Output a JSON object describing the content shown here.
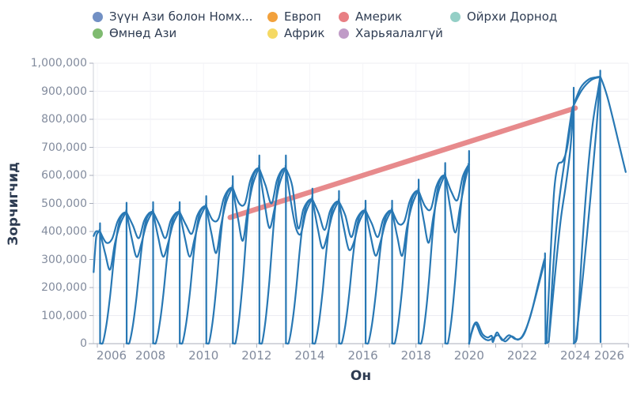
{
  "legend": {
    "items": [
      {
        "label": "Зүүн Ази болон Номх...",
        "color": "#7290c4"
      },
      {
        "label": "Европ",
        "color": "#f2a13c"
      },
      {
        "label": "Америк",
        "color": "#e87f84"
      },
      {
        "label": "Ойрхи Дорнод",
        "color": "#94cfc6"
      },
      {
        "label": "Өмнөд Ази",
        "color": "#7fbb70"
      },
      {
        "label": "Африк",
        "color": "#f5d964"
      },
      {
        "label": "Харьяалалгүй",
        "color": "#c09bc7"
      }
    ]
  },
  "axes": {
    "y_title": "Зорчигчид",
    "x_title": "Он",
    "y_tick_labels": [
      "1,000,000",
      "900,000",
      "800,000",
      "700,000",
      "600,000",
      "500,000",
      "400,000",
      "300,000",
      "200,000",
      "100,000",
      "0"
    ],
    "x_tick_labels": [
      "2006",
      "2008",
      "2010",
      "2012",
      "2014",
      "2016",
      "2018",
      "2020",
      "2022",
      "2024",
      "2026"
    ]
  },
  "chart_data": {
    "type": "line",
    "title": "",
    "xlabel": "Он",
    "ylabel": "Зорчигчид",
    "x_range": [
      2005.85,
      2026
    ],
    "ylim": [
      0,
      1000000
    ],
    "grid": true,
    "legend_position": "top",
    "series": [
      {
        "name": "Зүүн Ази болон Номх...",
        "color": "#2878b4",
        "style": "annual cumulative sawtooth, resets to ~0 each year",
        "annual_cumulative_peaks": [
          {
            "year": 2005,
            "passengers": 400000
          },
          {
            "year": 2006,
            "passengers": 468000
          },
          {
            "year": 2007,
            "passengers": 470000
          },
          {
            "year": 2008,
            "passengers": 470000
          },
          {
            "year": 2009,
            "passengers": 490000
          },
          {
            "year": 2010,
            "passengers": 556000
          },
          {
            "year": 2011,
            "passengers": 625000
          },
          {
            "year": 2012,
            "passengers": 625000
          },
          {
            "year": 2013,
            "passengers": 515000
          },
          {
            "year": 2014,
            "passengers": 507000
          },
          {
            "year": 2015,
            "passengers": 475000
          },
          {
            "year": 2016,
            "passengers": 475000
          },
          {
            "year": 2017,
            "passengers": 545000
          },
          {
            "year": 2018,
            "passengers": 600000
          },
          {
            "year": 2019,
            "passengers": 640000
          }
        ],
        "pandemic_recovery_path": [
          [
            2019.97,
            640000
          ],
          [
            2020.0,
            640000
          ],
          [
            2020.0,
            640000
          ],
          [
            2020.01,
            5000
          ],
          [
            2020.01,
            5000
          ],
          [
            2020.15,
            60000
          ],
          [
            2020.3,
            75000
          ],
          [
            2020.5,
            35000
          ],
          [
            2020.7,
            22000
          ],
          [
            2020.85,
            28000
          ],
          [
            2020.9,
            6000
          ],
          [
            2021.05,
            40000
          ],
          [
            2021.25,
            12000
          ],
          [
            2021.5,
            30000
          ],
          [
            2021.75,
            16000
          ],
          [
            2022.0,
            26000
          ],
          [
            2022.3,
            95000
          ],
          [
            2022.6,
            210000
          ],
          [
            2022.82,
            295000
          ],
          [
            2022.86,
            300000
          ],
          [
            2022.86,
            300000
          ],
          [
            2022.88,
            3000
          ],
          [
            2022.88,
            3000
          ],
          [
            2023.0,
            10000
          ],
          [
            2023.18,
            290000
          ],
          [
            2023.38,
            500000
          ],
          [
            2023.58,
            640000
          ],
          [
            2023.75,
            755000
          ],
          [
            2023.88,
            835000
          ],
          [
            2023.93,
            848000
          ],
          [
            2023.94,
            850000
          ],
          [
            2023.94,
            850000
          ],
          [
            2023.95,
            4000
          ],
          [
            2023.95,
            4000
          ],
          [
            2024.06,
            20000
          ],
          [
            2024.25,
            330000
          ],
          [
            2024.45,
            590000
          ],
          [
            2024.65,
            780000
          ],
          [
            2024.85,
            900000
          ],
          [
            2024.93,
            945000
          ],
          [
            2024.94,
            948000
          ],
          [
            2024.94,
            948000
          ],
          [
            2024.95,
            12000
          ],
          [
            2024.95,
            12000
          ]
        ],
        "extra_strands": [
          [
            [
              2005.86,
              255000
            ],
            [
              2005.9,
              310000
            ],
            [
              2005.96,
              382000
            ],
            [
              2006.05,
              399000
            ]
          ],
          [
            [
              2022.92,
              8000
            ],
            [
              2023.06,
              300000
            ],
            [
              2023.2,
              540000
            ],
            [
              2023.34,
              635000
            ],
            [
              2023.52,
              650000
            ],
            [
              2023.68,
              692000
            ],
            [
              2023.82,
              778000
            ],
            [
              2023.93,
              848000
            ]
          ],
          [
            [
              2023.0,
              6000
            ],
            [
              2023.22,
              230000
            ],
            [
              2023.45,
              440000
            ],
            [
              2023.65,
              570000
            ],
            [
              2023.82,
              700000
            ],
            [
              2023.93,
              846000
            ]
          ],
          [
            [
              2024.02,
              10000
            ],
            [
              2024.3,
              250000
            ],
            [
              2024.58,
              530000
            ],
            [
              2024.8,
              770000
            ],
            [
              2024.92,
              944000
            ]
          ],
          [
            [
              2023.94,
              852000
            ],
            [
              2024.2,
              912000
            ],
            [
              2024.5,
              942000
            ],
            [
              2024.78,
              950000
            ],
            [
              2024.93,
              952000
            ]
          ],
          [
            [
              2023.94,
              850000
            ],
            [
              2024.25,
              905000
            ],
            [
              2024.6,
              940000
            ],
            [
              2024.9,
              950000
            ],
            [
              2024.96,
              948000
            ],
            [
              2025.2,
              882000
            ],
            [
              2025.5,
              770000
            ],
            [
              2025.72,
              682000
            ],
            [
              2025.9,
              612000
            ]
          ],
          [
            [
              2020.0,
              3000
            ],
            [
              2020.1,
              40000
            ],
            [
              2020.25,
              70000
            ],
            [
              2020.45,
              30000
            ],
            [
              2020.7,
              12000
            ],
            [
              2020.9,
              20000
            ],
            [
              2021.1,
              30000
            ],
            [
              2021.35,
              8000
            ],
            [
              2021.6,
              26000
            ],
            [
              2021.85,
              14000
            ],
            [
              2022.1,
              40000
            ],
            [
              2022.4,
              130000
            ],
            [
              2022.7,
              240000
            ],
            [
              2022.86,
              298000
            ]
          ]
        ]
      },
      {
        "name": "Америк",
        "color": "#e78a8c",
        "style": "thick straight trend segment",
        "trend_points": [
          [
            2011,
            450000
          ],
          [
            2024,
            840000
          ]
        ]
      }
    ]
  }
}
